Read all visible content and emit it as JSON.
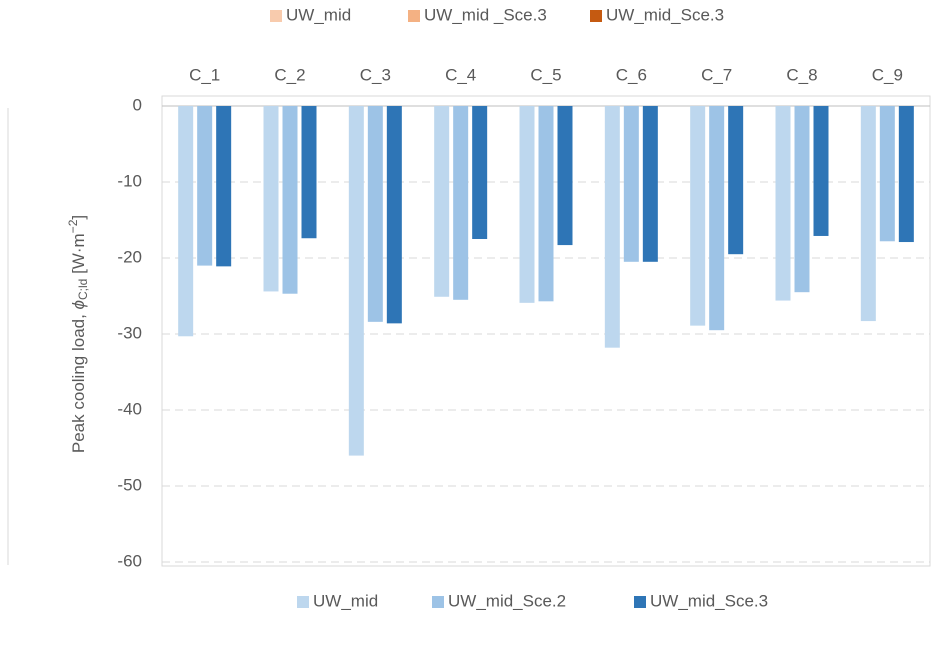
{
  "chart_data": {
    "type": "bar",
    "ylabel": {
      "text": "Peak cooling load, ",
      "symbol": "ϕ",
      "subscript": "C;ld",
      "unit": " [W·m",
      "superscript": "−2",
      "close": "]"
    },
    "categories": [
      "C_1",
      "C_2",
      "C_3",
      "C_4",
      "C_5",
      "C_6",
      "C_7",
      "C_8",
      "C_9"
    ],
    "series": [
      {
        "name": "UW_mid",
        "color": "#bdd7ee",
        "values": [
          -30.3,
          -24.4,
          -46.0,
          -25.1,
          -25.9,
          -31.8,
          -28.9,
          -25.6,
          -28.3
        ]
      },
      {
        "name": "UW_mid_Sce.2",
        "color": "#9dc3e6",
        "values": [
          -21.0,
          -24.7,
          -28.4,
          -25.5,
          -25.7,
          -20.5,
          -29.5,
          -24.5,
          -17.8
        ]
      },
      {
        "name": "UW_mid_Sce.3",
        "color": "#2e75b6",
        "values": [
          -21.1,
          -17.4,
          -28.6,
          -17.5,
          -18.3,
          -20.5,
          -19.5,
          -17.1,
          -17.9
        ]
      }
    ],
    "ylim": [
      -60,
      0
    ],
    "yticks": [
      0,
      -10,
      -20,
      -30,
      -40,
      -50,
      -60
    ],
    "grid": true,
    "background_legend": [
      {
        "name": "UW_mid",
        "color": "#f8cbad"
      },
      {
        "name": "UW_mid _Sce.3",
        "color": "#f4b183"
      },
      {
        "name": "UW_mid_Sce.3",
        "color": "#c55a11"
      }
    ]
  }
}
